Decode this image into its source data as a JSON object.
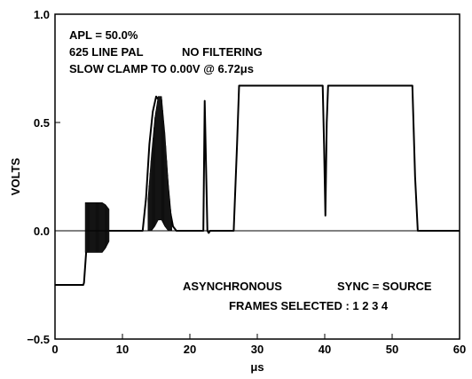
{
  "chart_data": {
    "type": "line",
    "xlabel": "μs",
    "ylabel": "VOLTS",
    "xlim": [
      0,
      60
    ],
    "ylim": [
      -0.5,
      1.0
    ],
    "x_ticks": [
      0,
      10,
      20,
      30,
      40,
      50,
      60
    ],
    "x_tick_labels": [
      "0",
      "10",
      "20",
      "30",
      "40",
      "50",
      "60"
    ],
    "y_ticks": [
      -0.5,
      0.0,
      0.5,
      1.0
    ],
    "y_tick_labels": [
      "−0.5",
      "0.0",
      "0.5",
      "1.0"
    ],
    "grid": false,
    "reference_line_y": 0.0,
    "annotations": {
      "line1": "APL = 50.0%",
      "line2_a": "625 LINE PAL",
      "line2_b": "NO FILTERING",
      "line3": "SLOW CLAMP TO 0.00V @ 6.72μs",
      "mode": "ASYNCHRONOUS",
      "sync": "SYNC = SOURCE",
      "frames": "FRAMES SELECTED : 1  2  3  4"
    },
    "series": [
      {
        "x": [
          0.0,
          4.2,
          4.3,
          4.8,
          5.0,
          8.5,
          8.8,
          13.0,
          13.5,
          14.0,
          14.5,
          15.0,
          15.5,
          16.0,
          16.5,
          17.0,
          17.5,
          18.0,
          22.0,
          22.2,
          22.4,
          22.6,
          22.8,
          23.0,
          26.5,
          27.0,
          27.3,
          39.7,
          39.9,
          40.1,
          40.3,
          40.5,
          53.0,
          53.4,
          53.8,
          60.0
        ],
        "y": [
          -0.25,
          -0.25,
          -0.24,
          -0.02,
          0.0,
          0.0,
          0.0,
          0.0,
          0.15,
          0.4,
          0.55,
          0.62,
          0.6,
          0.5,
          0.3,
          0.1,
          0.02,
          0.0,
          0.0,
          0.6,
          0.3,
          0.0,
          -0.01,
          0.0,
          0.0,
          0.4,
          0.67,
          0.67,
          0.4,
          0.07,
          0.5,
          0.67,
          0.67,
          0.25,
          0.0,
          0.0
        ]
      },
      {
        "x": [
          4.5,
          5.0,
          5.5,
          6.0,
          6.5,
          7.0,
          7.5,
          8.0
        ],
        "y": [
          0.13,
          0.13,
          0.13,
          0.13,
          0.13,
          0.13,
          0.12,
          0.1
        ],
        "y_low": [
          -0.1,
          -0.1,
          -0.1,
          -0.1,
          -0.1,
          -0.1,
          -0.08,
          -0.05
        ]
      },
      {
        "x": [
          13.8,
          14.3,
          14.8,
          15.3,
          15.8,
          16.3,
          16.8,
          17.3
        ],
        "y": [
          0.15,
          0.35,
          0.52,
          0.62,
          0.62,
          0.45,
          0.22,
          0.05
        ],
        "y_low": [
          0.0,
          0.0,
          0.02,
          0.05,
          0.05,
          0.02,
          0.0,
          0.0
        ]
      }
    ]
  }
}
